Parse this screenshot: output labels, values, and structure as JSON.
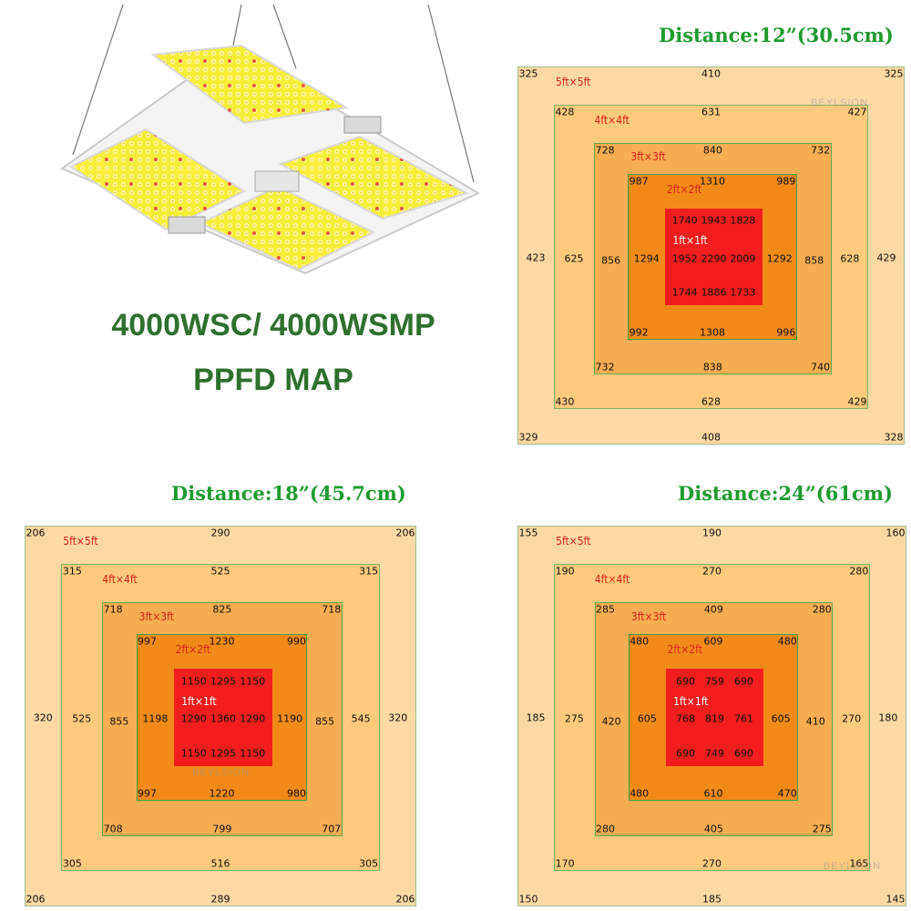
{
  "headline": {
    "model": "4000WSC/ 4000WSMP",
    "subtitle": "PPFD MAP"
  },
  "watermark": "BEYLSION",
  "zone_labels": [
    "5ft×5ft",
    "4ft×4ft",
    "3ft×3ft",
    "2ft×2ft",
    "1ft×1ft"
  ],
  "maps": [
    {
      "title": "Distance:12”(30.5cm)",
      "values": {
        "z1": {
          "tl": "325",
          "t": "410",
          "tr": "325",
          "l": "423",
          "r": "429",
          "bl": "329",
          "b": "408",
          "br": "328"
        },
        "z2": {
          "tl": "428",
          "t": "631",
          "tr": "427",
          "l": "625",
          "r": "628",
          "bl": "430",
          "b": "628",
          "br": "429"
        },
        "z3": {
          "tl": "728",
          "t": "840",
          "tr": "732",
          "l": "856",
          "r": "858",
          "bl": "732",
          "b": "838",
          "br": "740"
        },
        "z4": {
          "tl": "987",
          "t": "1310",
          "tr": "989",
          "l": "1294",
          "r": "1292",
          "bl": "992",
          "b": "1308",
          "br": "996"
        },
        "z5": {
          "tl": "1740",
          "t": "1943",
          "tr": "1828",
          "l": "1952",
          "c": "2290",
          "r": "2009",
          "bl": "1744",
          "b": "1886",
          "br": "1733"
        }
      }
    },
    {
      "title": "Distance:18”(45.7cm)",
      "values": {
        "z1": {
          "tl": "206",
          "t": "290",
          "tr": "206",
          "l": "320",
          "r": "320",
          "bl": "206",
          "b": "289",
          "br": "206"
        },
        "z2": {
          "tl": "315",
          "t": "525",
          "tr": "315",
          "l": "525",
          "r": "545",
          "bl": "305",
          "b": "516",
          "br": "305"
        },
        "z3": {
          "tl": "718",
          "t": "825",
          "tr": "718",
          "l": "855",
          "r": "855",
          "bl": "708",
          "b": "799",
          "br": "707"
        },
        "z4": {
          "tl": "997",
          "t": "1230",
          "tr": "990",
          "l": "1198",
          "r": "1190",
          "bl": "997",
          "b": "1220",
          "br": "980"
        },
        "z5": {
          "tl": "1150",
          "t": "1295",
          "tr": "1150",
          "l": "1290",
          "c": "1360",
          "r": "1290",
          "bl": "1150",
          "b": "1295",
          "br": "1150"
        }
      }
    },
    {
      "title": "Distance:24”(61cm)",
      "values": {
        "z1": {
          "tl": "155",
          "t": "190",
          "tr": "160",
          "l": "185",
          "r": "180",
          "bl": "150",
          "b": "185",
          "br": "145"
        },
        "z2": {
          "tl": "190",
          "t": "270",
          "tr": "280",
          "l": "275",
          "r": "270",
          "bl": "170",
          "b": "270",
          "br": "165"
        },
        "z3": {
          "tl": "285",
          "t": "409",
          "tr": "280",
          "l": "420",
          "r": "410",
          "bl": "280",
          "b": "405",
          "br": "275"
        },
        "z4": {
          "tl": "480",
          "t": "609",
          "tr": "480",
          "l": "605",
          "r": "605",
          "bl": "480",
          "b": "610",
          "br": "470"
        },
        "z5": {
          "tl": "690",
          "t": "759",
          "tr": "690",
          "l": "768",
          "c": "819",
          "r": "761",
          "bl": "690",
          "b": "749",
          "br": "690"
        }
      }
    }
  ],
  "colors": {
    "headline": "#2f6f2f",
    "distance_title": "#1f9a2f",
    "zone_5ft": "#ffd9a3",
    "zone_4ft": "#ffca7d",
    "zone_3ft": "#f7ad52",
    "zone_2ft": "#f28a18",
    "zone_1ft": "#f21d1d"
  }
}
